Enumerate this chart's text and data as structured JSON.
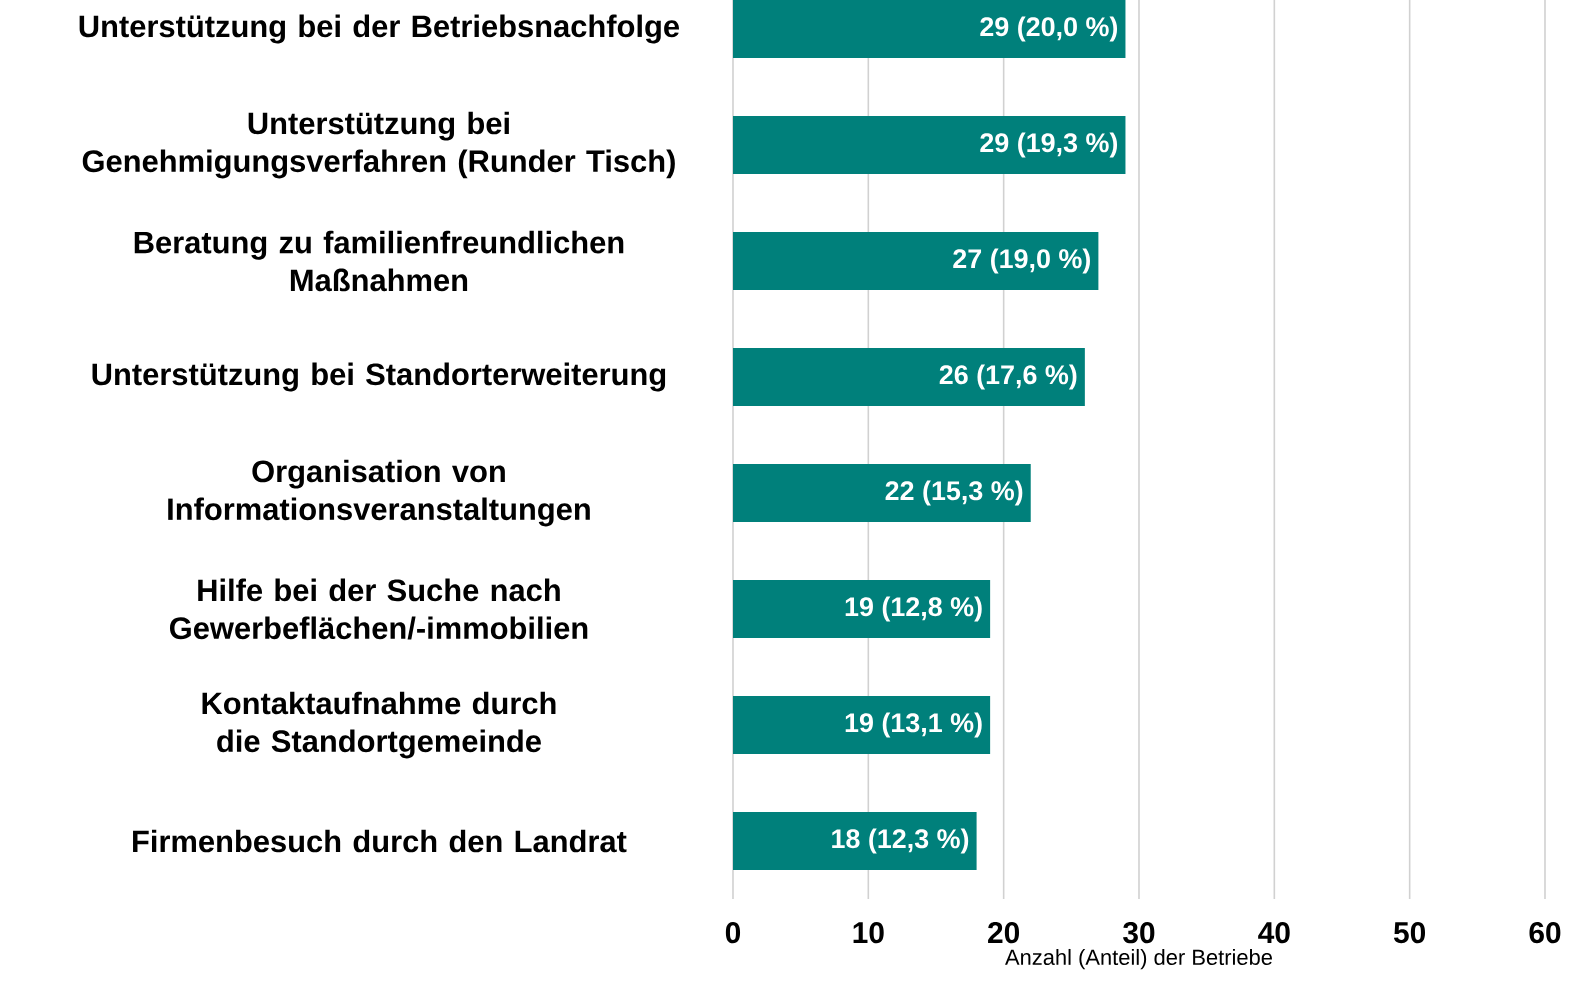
{
  "chart_data": {
    "type": "bar",
    "orientation": "horizontal",
    "xlabel": "Anzahl (Anteil) der Betriebe",
    "categories": [
      "Unterstützung bei der Betriebsnachfolge",
      "Unterstützung bei Genehmigungsverfahren (Runder Tisch)",
      "Beratung zu familienfreundlichen Maßnahmen",
      "Unterstützung bei Standorterweiterung",
      "Organisation von Informationsveranstaltungen",
      "Hilfe bei der Suche nach Gewerbeflächen/-immobilien",
      "Kontaktaufnahme durch die Standortgemeinde",
      "Firmenbesuch durch den Landrat"
    ],
    "values": [
      29,
      29,
      27,
      26,
      22,
      19,
      19,
      18
    ],
    "value_labels": [
      "29 (20,0 %)",
      "29 (19,3 %)",
      "27 (19,0 %)",
      "26 (17,6 %)",
      "22 (15,3 %)",
      "19 (12,8 %)",
      "19 (13,1 %)",
      "18 (12,3 %)"
    ],
    "color": "#00807b",
    "xlim": [
      0,
      60
    ],
    "xticks": [
      0,
      10,
      20,
      30,
      40,
      50,
      60
    ],
    "grid": "x"
  }
}
